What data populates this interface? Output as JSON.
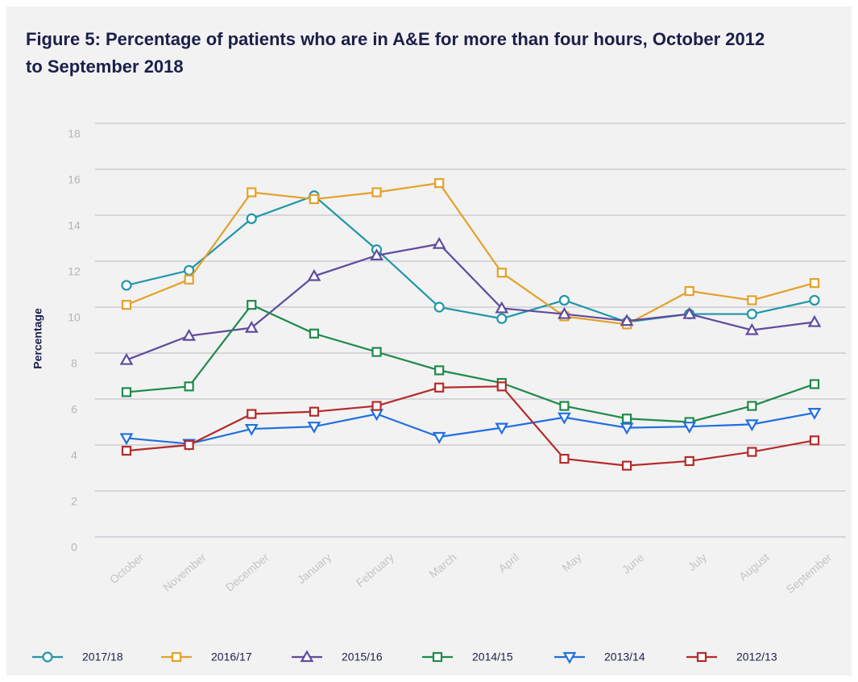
{
  "chart_data": {
    "type": "line",
    "title": "Figure 5: Percentage of patients who are in A&E for more than four hours, October 2012 to September 2018",
    "y_label": "Percentage",
    "categories": [
      "October",
      "November",
      "December",
      "January",
      "February",
      "March",
      "April",
      "May",
      "June",
      "July",
      "August",
      "September"
    ],
    "ylim": [
      0,
      18
    ],
    "yticks": [
      0,
      2,
      4,
      6,
      8,
      10,
      12,
      14,
      16,
      18
    ],
    "grid": true,
    "series": [
      {
        "name": "2017/18",
        "color": "#1f97a8",
        "marker": "circle",
        "values": [
          10.95,
          11.6,
          13.85,
          14.85,
          12.5,
          10.0,
          9.5,
          10.3,
          9.35,
          9.7,
          9.7,
          10.3
        ]
      },
      {
        "name": "2016/17",
        "color": "#e5a02a",
        "marker": "square",
        "values": [
          10.1,
          11.2,
          15.0,
          14.7,
          15.0,
          15.4,
          11.5,
          9.6,
          9.25,
          10.7,
          10.3,
          11.05
        ]
      },
      {
        "name": "2015/16",
        "color": "#5f4b9e",
        "marker": "triangle-up",
        "values": [
          7.7,
          8.75,
          9.1,
          11.35,
          12.25,
          12.75,
          9.95,
          9.7,
          9.4,
          9.7,
          9.0,
          9.35
        ]
      },
      {
        "name": "2014/15",
        "color": "#1e8a4a",
        "marker": "square",
        "values": [
          6.3,
          6.55,
          10.1,
          8.85,
          8.05,
          7.25,
          6.7,
          5.7,
          5.15,
          5.0,
          5.7,
          6.65
        ]
      },
      {
        "name": "2013/14",
        "color": "#1f6fe0",
        "marker": "triangle-down",
        "values": [
          4.3,
          4.05,
          4.7,
          4.8,
          5.35,
          4.35,
          4.75,
          5.2,
          4.75,
          4.8,
          4.9,
          5.4
        ]
      },
      {
        "name": "2012/13",
        "color": "#b52a2a",
        "marker": "square",
        "values": [
          3.75,
          4.0,
          5.35,
          5.45,
          5.7,
          6.5,
          6.55,
          3.4,
          3.1,
          3.3,
          3.7,
          4.2
        ]
      }
    ]
  }
}
